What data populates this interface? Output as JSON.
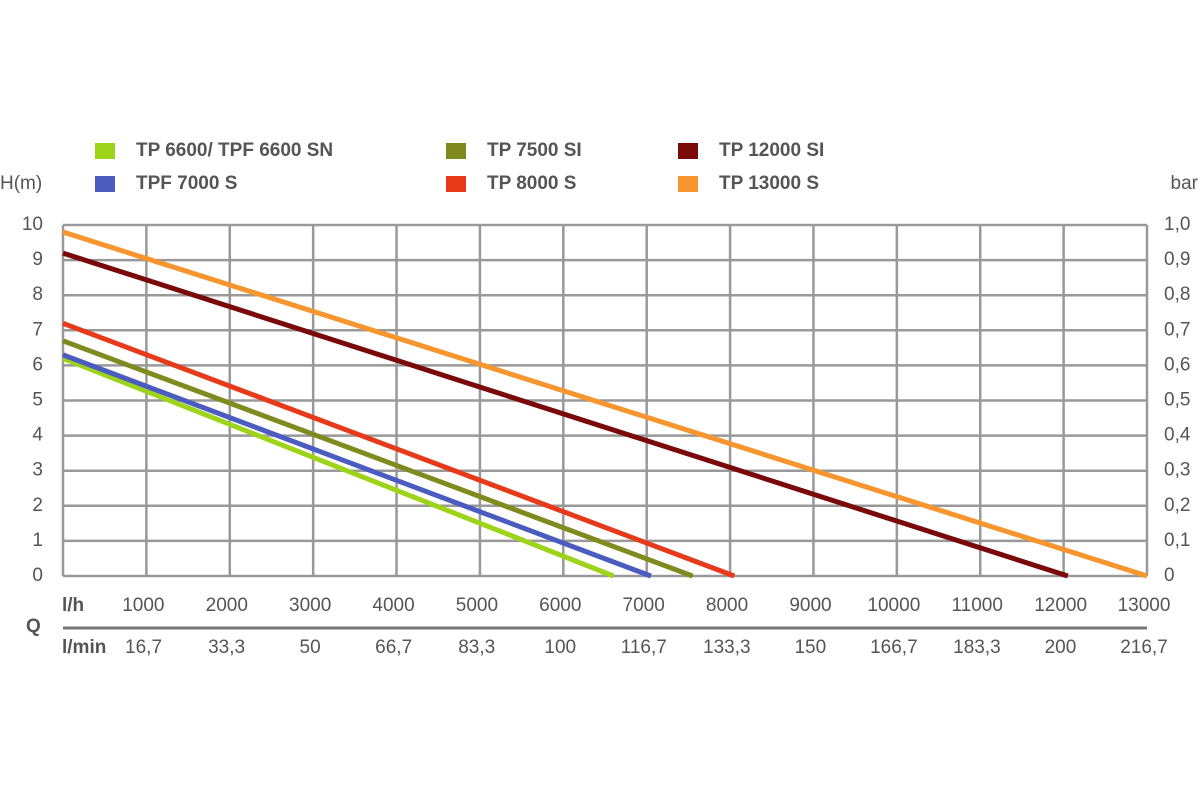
{
  "chart_data": {
    "type": "line",
    "ylabel": "H(m)",
    "y2label": "bar",
    "xlabel": "l/h",
    "x2label": "l/min",
    "qlabel": "Q",
    "xlim": [
      0,
      13000
    ],
    "xticks": [
      1000,
      2000,
      3000,
      4000,
      5000,
      6000,
      7000,
      8000,
      9000,
      10000,
      11000,
      12000,
      13000
    ],
    "x2lim": [
      0,
      216.7
    ],
    "x2ticks": [
      {
        "value": 16.7,
        "label": "16,7"
      },
      {
        "value": 33.3,
        "label": "33,3"
      },
      50,
      {
        "value": 66.7,
        "label": "66,7"
      },
      {
        "value": 83.3,
        "label": "83,3"
      },
      100,
      {
        "value": 116.7,
        "label": "116,7"
      },
      {
        "value": 133.3,
        "label": "133,3"
      },
      150,
      {
        "value": 166.7,
        "label": "166,7"
      },
      {
        "value": 183.3,
        "label": "183,3"
      },
      200,
      {
        "value": 216.7,
        "label": "216,7"
      }
    ],
    "ylim": [
      0,
      10
    ],
    "yticks": [
      0,
      1,
      2,
      3,
      4,
      5,
      6,
      7,
      8,
      9,
      10
    ],
    "y2lim": [
      0,
      1
    ],
    "y2ticks": [
      0,
      {
        "value": 0.1,
        "label": "0,1"
      },
      {
        "value": 0.2,
        "label": "0,2"
      },
      {
        "value": 0.3,
        "label": "0,3"
      },
      {
        "value": 0.4,
        "label": "0,4"
      },
      {
        "value": 0.5,
        "label": "0,5"
      },
      {
        "value": 0.6,
        "label": "0,6"
      },
      {
        "value": 0.7,
        "label": "0,7"
      },
      {
        "value": 0.8,
        "label": "0,8"
      },
      {
        "value": 0.9,
        "label": "0,9"
      },
      {
        "value": 1,
        "label": "1,0"
      }
    ],
    "grid": true,
    "series": [
      {
        "name": "TP 6600/ TPF 6600 SN",
        "color": "#9dd41a",
        "x": [
          0,
          6600
        ],
        "values": [
          6.2,
          0
        ]
      },
      {
        "name": "TPF 7000 S",
        "color": "#4a5cc0",
        "x": [
          0,
          7050
        ],
        "values": [
          6.3,
          0
        ]
      },
      {
        "name": "TP 7500 SI",
        "color": "#7f8a1f",
        "x": [
          0,
          7550
        ],
        "values": [
          6.7,
          0
        ]
      },
      {
        "name": "TP 8000 S",
        "color": "#e63a1a",
        "x": [
          0,
          8050
        ],
        "values": [
          7.2,
          0
        ]
      },
      {
        "name": "TP 12000 SI",
        "color": "#7a0a0a",
        "x": [
          0,
          12050
        ],
        "values": [
          9.2,
          0
        ]
      },
      {
        "name": "TP 13000 S",
        "color": "#f7952e",
        "x": [
          0,
          13000
        ],
        "values": [
          9.8,
          0
        ]
      }
    ]
  }
}
